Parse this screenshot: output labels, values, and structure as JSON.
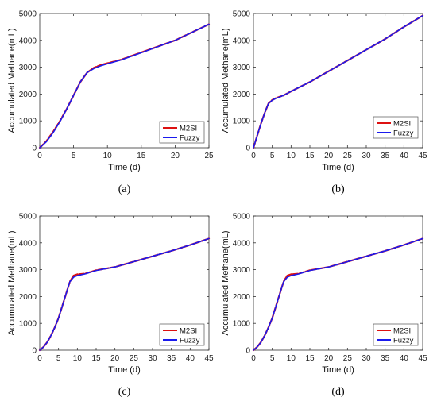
{
  "colors": {
    "m2si": "#dd1111",
    "fuzzy": "#1a1aee",
    "axis": "#333333"
  },
  "chart_data": [
    {
      "type": "line",
      "panel_label": "(a)",
      "xlabel": "Time (d)",
      "ylabel": "Accumulated Methane(mL)",
      "xlim": [
        0,
        25
      ],
      "ylim": [
        0,
        5000
      ],
      "xticks": [
        0,
        5,
        10,
        15,
        20,
        25
      ],
      "yticks": [
        0,
        1000,
        2000,
        3000,
        4000,
        5000
      ],
      "legend": "bottom-right",
      "series": [
        {
          "name": "M2SI",
          "x": [
            0,
            1,
            2,
            3,
            4,
            5,
            6,
            7,
            8,
            9,
            10,
            12,
            15,
            20,
            25
          ],
          "y": [
            0,
            250,
            600,
            1000,
            1450,
            1950,
            2450,
            2800,
            2980,
            3080,
            3150,
            3280,
            3550,
            4000,
            4600
          ]
        },
        {
          "name": "Fuzzy",
          "x": [
            0,
            1,
            2,
            3,
            4,
            5,
            6,
            7,
            8,
            9,
            10,
            12,
            15,
            20,
            25
          ],
          "y": [
            0,
            230,
            570,
            980,
            1450,
            1950,
            2450,
            2800,
            2950,
            3050,
            3130,
            3270,
            3540,
            4000,
            4600
          ]
        }
      ]
    },
    {
      "type": "line",
      "panel_label": "(b)",
      "xlabel": "Time (d)",
      "ylabel": "Accumulated Methane(mL)",
      "xlim": [
        0,
        45
      ],
      "ylim": [
        0,
        5000
      ],
      "xticks": [
        0,
        5,
        10,
        15,
        20,
        25,
        30,
        35,
        40,
        45
      ],
      "yticks": [
        0,
        1000,
        2000,
        3000,
        4000,
        5000
      ],
      "legend": "top-right",
      "series": [
        {
          "name": "M2SI",
          "x": [
            0,
            1,
            2,
            3,
            4,
            5,
            6,
            8,
            10,
            15,
            20,
            25,
            30,
            35,
            40,
            45
          ],
          "y": [
            0,
            450,
            900,
            1300,
            1650,
            1780,
            1850,
            1950,
            2100,
            2450,
            2850,
            3250,
            3650,
            4050,
            4500,
            4920
          ]
        },
        {
          "name": "Fuzzy",
          "x": [
            0,
            1,
            2,
            3,
            4,
            5,
            6,
            8,
            10,
            15,
            20,
            25,
            30,
            35,
            40,
            45
          ],
          "y": [
            0,
            450,
            900,
            1300,
            1650,
            1770,
            1840,
            1950,
            2100,
            2450,
            2850,
            3250,
            3650,
            4050,
            4500,
            4920
          ]
        }
      ]
    },
    {
      "type": "line",
      "panel_label": "(c)",
      "xlabel": "Time (d)",
      "ylabel": "Accumulated Methane(mL)",
      "xlim": [
        0,
        45
      ],
      "ylim": [
        0,
        5000
      ],
      "xticks": [
        0,
        5,
        10,
        15,
        20,
        25,
        30,
        35,
        40,
        45
      ],
      "yticks": [
        0,
        1000,
        2000,
        3000,
        4000,
        5000
      ],
      "legend": "bottom-right",
      "series": [
        {
          "name": "M2SI",
          "x": [
            0,
            1,
            2,
            3,
            4,
            5,
            6,
            7,
            8,
            9,
            10,
            12,
            15,
            20,
            25,
            30,
            35,
            40,
            45
          ],
          "y": [
            0,
            120,
            300,
            550,
            850,
            1200,
            1650,
            2100,
            2550,
            2780,
            2830,
            2850,
            2980,
            3100,
            3300,
            3500,
            3700,
            3920,
            4160
          ]
        },
        {
          "name": "Fuzzy",
          "x": [
            0,
            1,
            2,
            3,
            4,
            5,
            6,
            7,
            8,
            9,
            10,
            12,
            15,
            20,
            25,
            30,
            35,
            40,
            45
          ],
          "y": [
            0,
            120,
            300,
            550,
            850,
            1200,
            1650,
            2100,
            2550,
            2720,
            2780,
            2840,
            2970,
            3100,
            3300,
            3500,
            3700,
            3920,
            4160
          ]
        }
      ]
    },
    {
      "type": "line",
      "panel_label": "(d)",
      "xlabel": "Time (d)",
      "ylabel": "Accumulated Methane(mL)",
      "xlim": [
        0,
        45
      ],
      "ylim": [
        0,
        5000
      ],
      "xticks": [
        0,
        5,
        10,
        15,
        20,
        25,
        30,
        35,
        40,
        45
      ],
      "yticks": [
        0,
        1000,
        2000,
        3000,
        4000,
        5000
      ],
      "legend": "bottom-right",
      "series": [
        {
          "name": "M2SI",
          "x": [
            0,
            1,
            2,
            3,
            4,
            5,
            6,
            7,
            8,
            9,
            10,
            12,
            15,
            20,
            25,
            30,
            35,
            40,
            45
          ],
          "y": [
            0,
            120,
            300,
            550,
            850,
            1200,
            1650,
            2100,
            2550,
            2780,
            2830,
            2850,
            2980,
            3100,
            3300,
            3500,
            3700,
            3920,
            4160
          ]
        },
        {
          "name": "Fuzzy",
          "x": [
            0,
            1,
            2,
            3,
            4,
            5,
            6,
            7,
            8,
            9,
            10,
            12,
            15,
            20,
            25,
            30,
            35,
            40,
            45
          ],
          "y": [
            0,
            120,
            300,
            550,
            850,
            1200,
            1650,
            2100,
            2550,
            2720,
            2780,
            2840,
            2970,
            3100,
            3300,
            3500,
            3700,
            3920,
            4160
          ]
        }
      ]
    }
  ]
}
